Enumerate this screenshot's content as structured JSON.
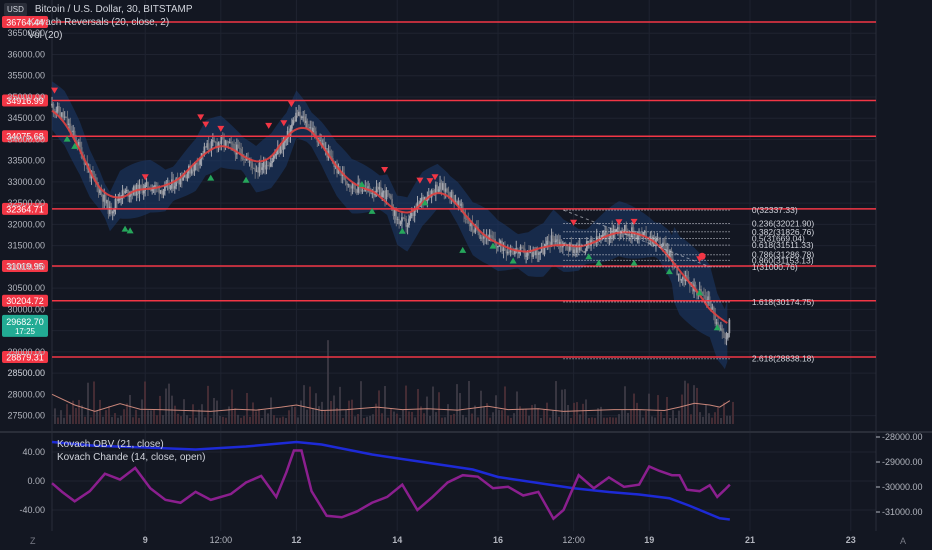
{
  "legend": {
    "currency_badge": "USD",
    "symbol_title": "Bitcoin / U.S. Dollar, 30, BITSTAMP",
    "indicator1": "Kovach Reversals (20, close, 2)",
    "indicator2": "Vol (20)",
    "indicator3": "Kovach OBV (21, close)",
    "indicator4": "Kovach Chande (14, close, open)"
  },
  "colors": {
    "background": "#131722",
    "grid": "#1f2330",
    "axis_text": "#b2b5be",
    "level_line": "#f23645",
    "level_badge": "#f23645",
    "candle_up": "#a3a6af",
    "candle_down": "#6d707a",
    "band_fill": "#1b3a6b",
    "ma_line": "#e0403f",
    "up_marker": "#26a65b",
    "down_marker": "#f23645",
    "fib_line": "#d1d4dc",
    "volume_line": "#c9867a",
    "obv_line": "#1d2ad6",
    "chande_line": "#8b1f8e",
    "price_badge": "#22ab94"
  },
  "chart_data": [
    {
      "type": "candlestick",
      "title": "Bitcoin / U.S. Dollar, 30, BITSTAMP",
      "y_ticks": [
        "28500.00",
        "29000.00",
        "29500.00",
        "30000.00",
        "30500.00",
        "31000.00",
        "31500.00",
        "32000.00",
        "32500.00",
        "33000.00",
        "33500.00",
        "34000.00",
        "34500.00",
        "35000.00",
        "35500.00",
        "36000.00",
        "36500.00"
      ],
      "y_tick_values": [
        28500,
        29000,
        29500,
        30000,
        30500,
        31000,
        31500,
        32000,
        32500,
        33000,
        33500,
        34000,
        34500,
        35000,
        35500,
        36000,
        36500
      ],
      "ylim": [
        28300,
        37000
      ],
      "x_ticks": [
        "9",
        "12:00",
        "12",
        "14",
        "16",
        "12:00",
        "19",
        "21",
        "23"
      ],
      "x_tick_days": [
        9,
        10.5,
        12,
        14,
        16,
        17.5,
        19,
        21,
        23
      ],
      "xlim": [
        7.15,
        23.5
      ],
      "price_path": [
        [
          7.15,
          34800
        ],
        [
          7.4,
          34500
        ],
        [
          7.7,
          33800
        ],
        [
          7.9,
          33200
        ],
        [
          8.1,
          32800
        ],
        [
          8.3,
          32300
        ],
        [
          8.5,
          32700
        ],
        [
          8.8,
          32800
        ],
        [
          9.1,
          32900
        ],
        [
          9.4,
          32800
        ],
        [
          9.7,
          33100
        ],
        [
          10.0,
          33400
        ],
        [
          10.2,
          33800
        ],
        [
          10.5,
          33950
        ],
        [
          10.9,
          33700
        ],
        [
          11.2,
          33300
        ],
        [
          11.5,
          33500
        ],
        [
          11.8,
          34000
        ],
        [
          12.0,
          34600
        ],
        [
          12.2,
          34400
        ],
        [
          12.5,
          33900
        ],
        [
          12.8,
          33300
        ],
        [
          13.1,
          32900
        ],
        [
          13.5,
          32800
        ],
        [
          13.8,
          32700
        ],
        [
          14.0,
          32100
        ],
        [
          14.2,
          32000
        ],
        [
          14.5,
          32600
        ],
        [
          14.8,
          32900
        ],
        [
          15.0,
          32800
        ],
        [
          15.2,
          32500
        ],
        [
          15.5,
          31900
        ],
        [
          15.8,
          31700
        ],
        [
          16.0,
          31500
        ],
        [
          16.3,
          31400
        ],
        [
          16.6,
          31300
        ],
        [
          16.9,
          31400
        ],
        [
          17.1,
          31700
        ],
        [
          17.3,
          31500
        ],
        [
          17.6,
          31400
        ],
        [
          17.8,
          31500
        ],
        [
          18.1,
          31700
        ],
        [
          18.4,
          31900
        ],
        [
          18.7,
          31800
        ],
        [
          19.0,
          31700
        ],
        [
          19.2,
          31600
        ],
        [
          19.4,
          31300
        ],
        [
          19.6,
          30800
        ],
        [
          19.8,
          30600
        ],
        [
          20.0,
          30400
        ],
        [
          20.2,
          30200
        ],
        [
          20.35,
          29600
        ],
        [
          20.5,
          29300
        ],
        [
          20.6,
          29700
        ]
      ],
      "price_levels": [
        {
          "label": "36764.44",
          "value": 36764.44
        },
        {
          "label": "34916.99",
          "value": 34916.99
        },
        {
          "label": "34075.68",
          "value": 34075.68
        },
        {
          "label": "32364.71",
          "value": 32364.71
        },
        {
          "label": "31019.95",
          "value": 31019.95
        },
        {
          "label": "30204.72",
          "value": 30204.72
        },
        {
          "label": "28879.31",
          "value": 28879.31
        }
      ],
      "last_price": {
        "value": 29682.7,
        "label": "29682.70",
        "countdown": "17:25"
      },
      "fibonacci": [
        {
          "label": "0(32337.33)",
          "value": 32337.33
        },
        {
          "label": "0.236(32021.90)",
          "value": 32021.9
        },
        {
          "label": "0.382(31826.76)",
          "value": 31826.76
        },
        {
          "label": "0.5(31669.04)",
          "value": 31669.04
        },
        {
          "label": "0.618(31511.33)",
          "value": 31511.33
        },
        {
          "label": "0.786(31286.78)",
          "value": 31286.78
        },
        {
          "label": "0.860(31153.13)",
          "value": 31153.13
        },
        {
          "label": "1(31000.76)",
          "value": 31000.76
        },
        {
          "label": "1.618(30174.75)",
          "value": 30174.75
        },
        {
          "label": "2.618(28838.18)",
          "value": 28838.18
        }
      ],
      "down_markers": [
        [
          7.2,
          35150
        ],
        [
          10.1,
          34520
        ],
        [
          10.2,
          34350
        ],
        [
          10.5,
          34250
        ],
        [
          11.45,
          34320
        ],
        [
          11.75,
          34380
        ],
        [
          11.9,
          34830
        ],
        [
          9.0,
          33110
        ],
        [
          13.75,
          33280
        ],
        [
          14.45,
          33030
        ],
        [
          14.65,
          33020
        ],
        [
          14.75,
          33110
        ],
        [
          17.5,
          32040
        ],
        [
          18.4,
          32050
        ],
        [
          18.7,
          32060
        ],
        [
          20.0,
          31180
        ]
      ],
      "up_markers": [
        [
          7.45,
          34020
        ],
        [
          7.6,
          33850
        ],
        [
          8.6,
          31900
        ],
        [
          8.7,
          31860
        ],
        [
          10.3,
          33100
        ],
        [
          11.0,
          33050
        ],
        [
          13.3,
          32950
        ],
        [
          13.5,
          32320
        ],
        [
          14.1,
          31850
        ],
        [
          14.55,
          32520
        ],
        [
          15.9,
          31500
        ],
        [
          16.3,
          31150
        ],
        [
          15.3,
          31400
        ],
        [
          17.8,
          31250
        ],
        [
          18.0,
          31100
        ],
        [
          18.7,
          31100
        ],
        [
          19.4,
          30900
        ],
        [
          20.0,
          30400
        ],
        [
          20.35,
          29580
        ]
      ]
    },
    {
      "type": "line",
      "title": "Vol (20)",
      "series": [
        {
          "points": [
            [
              7.15,
              28000
            ],
            [
              7.6,
              27750
            ],
            [
              8.0,
              27600
            ],
            [
              8.5,
              27780
            ],
            [
              8.9,
              27650
            ],
            [
              9.3,
              27640
            ],
            [
              9.8,
              27620
            ],
            [
              10.3,
              27600
            ],
            [
              10.8,
              27650
            ],
            [
              11.2,
              27630
            ],
            [
              11.7,
              27700
            ],
            [
              12.0,
              27750
            ],
            [
              12.5,
              27620
            ],
            [
              13.0,
              27640
            ],
            [
              13.6,
              27700
            ],
            [
              14.1,
              27640
            ],
            [
              14.6,
              27660
            ],
            [
              15.2,
              27630
            ],
            [
              15.8,
              27720
            ],
            [
              16.2,
              27640
            ],
            [
              16.8,
              27660
            ],
            [
              17.3,
              27600
            ],
            [
              17.8,
              27620
            ],
            [
              18.3,
              27640
            ],
            [
              18.8,
              27640
            ],
            [
              19.3,
              27620
            ],
            [
              19.6,
              27700
            ],
            [
              19.9,
              27790
            ],
            [
              20.2,
              27750
            ],
            [
              20.4,
              27700
            ],
            [
              20.6,
              27850
            ]
          ]
        }
      ],
      "ylim": [
        27300,
        28700
      ],
      "y_ticks": [
        "27500.00",
        "28000.00",
        "28500.00"
      ]
    },
    {
      "type": "line",
      "title": "Kovach OBV (21, close) / Kovach Chande (14, close, open)",
      "left_y_ticks": [
        "40.00",
        "0.00",
        "-40.00"
      ],
      "left_y_values": [
        40,
        0,
        -40
      ],
      "left_ylim": [
        -62,
        62
      ],
      "right_y_ticks": [
        "-28000.00",
        "-29000.00",
        "-30000.00",
        "-31000.00"
      ],
      "right_y_values": [
        -28000,
        -29000,
        -30000,
        -31000
      ],
      "right_ylim": [
        -31500,
        -27600
      ],
      "series": [
        {
          "name": "Kovach OBV (21, close)",
          "axis": "right",
          "points": [
            [
              7.15,
              -28200
            ],
            [
              8.0,
              -28350
            ],
            [
              9.0,
              -28420
            ],
            [
              10.0,
              -28500
            ],
            [
              11.0,
              -28380
            ],
            [
              12.0,
              -28200
            ],
            [
              12.5,
              -28300
            ],
            [
              13.5,
              -28700
            ],
            [
              14.5,
              -29000
            ],
            [
              15.5,
              -29300
            ],
            [
              16.0,
              -29600
            ],
            [
              17.0,
              -29900
            ],
            [
              17.5,
              -30050
            ],
            [
              18.2,
              -30200
            ],
            [
              18.8,
              -30300
            ],
            [
              19.4,
              -30450
            ],
            [
              19.8,
              -30750
            ],
            [
              20.1,
              -31000
            ],
            [
              20.4,
              -31250
            ],
            [
              20.6,
              -31300
            ]
          ]
        },
        {
          "name": "Kovach Chande (14, close, open)",
          "axis": "left",
          "points": [
            [
              7.15,
              -3
            ],
            [
              7.35,
              -15
            ],
            [
              7.6,
              -28
            ],
            [
              7.9,
              -14
            ],
            [
              8.2,
              10
            ],
            [
              8.5,
              2
            ],
            [
              8.8,
              18
            ],
            [
              9.1,
              -10
            ],
            [
              9.4,
              -26
            ],
            [
              9.7,
              -30
            ],
            [
              10.0,
              -15
            ],
            [
              10.3,
              -26
            ],
            [
              10.7,
              -18
            ],
            [
              11.0,
              -2
            ],
            [
              11.3,
              7
            ],
            [
              11.6,
              -22
            ],
            [
              11.8,
              12
            ],
            [
              11.95,
              42
            ],
            [
              12.1,
              42
            ],
            [
              12.3,
              -14
            ],
            [
              12.6,
              -48
            ],
            [
              12.9,
              -50
            ],
            [
              13.2,
              -42
            ],
            [
              13.5,
              -30
            ],
            [
              13.8,
              -22
            ],
            [
              14.1,
              -5
            ],
            [
              14.4,
              -40
            ],
            [
              14.7,
              -22
            ],
            [
              15.0,
              -2
            ],
            [
              15.3,
              8
            ],
            [
              15.6,
              6
            ],
            [
              15.9,
              -10
            ],
            [
              16.2,
              -8
            ],
            [
              16.5,
              -20
            ],
            [
              16.8,
              -15
            ],
            [
              17.1,
              -52
            ],
            [
              17.3,
              -40
            ],
            [
              17.6,
              8
            ],
            [
              17.9,
              -10
            ],
            [
              18.2,
              5
            ],
            [
              18.5,
              -8
            ],
            [
              18.8,
              -5
            ],
            [
              19.0,
              20
            ],
            [
              19.2,
              14
            ],
            [
              19.45,
              8
            ],
            [
              19.6,
              8
            ],
            [
              19.75,
              -12
            ],
            [
              20.0,
              -14
            ],
            [
              20.2,
              -6
            ],
            [
              20.35,
              -22
            ],
            [
              20.5,
              -12
            ],
            [
              20.6,
              -5
            ]
          ]
        }
      ]
    }
  ],
  "footer": {
    "left_button": "Z",
    "right_button": "A"
  }
}
